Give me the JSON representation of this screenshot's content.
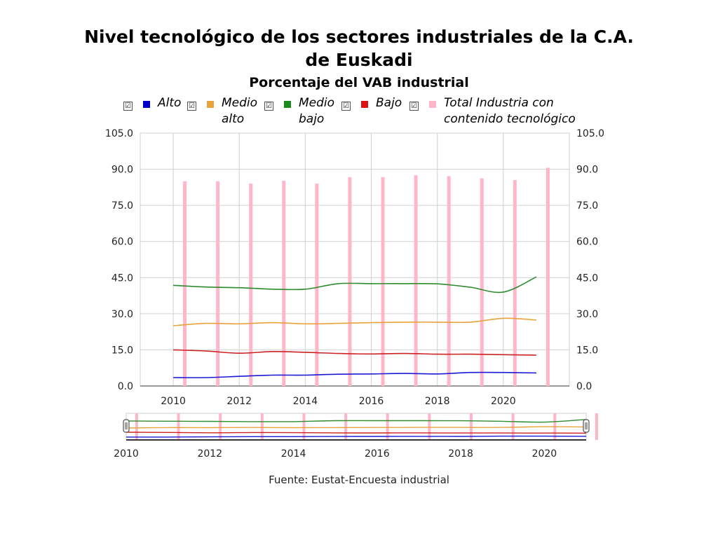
{
  "title": "Nivel tecnológico de los sectores industriales de la C.A. de Euskadi",
  "subtitle": "Porcentaje del VAB industrial",
  "source": "Fuente: Eustat-Encuesta industrial",
  "navigator_labels": [
    "2010",
    "2012",
    "2014",
    "2016",
    "2018",
    "2020"
  ],
  "chart_data": {
    "type": "line",
    "x_unit": "year",
    "xlim": [
      2009,
      2022
    ],
    "x_ticks": [
      "2010",
      "2012",
      "2014",
      "2016",
      "2018",
      "2020"
    ],
    "ylim": [
      0,
      105
    ],
    "y_ticks": [
      "0.0",
      "15.0",
      "30.0",
      "45.0",
      "60.0",
      "75.0",
      "90.0",
      "105.0"
    ],
    "grid": true,
    "legend_position": "top",
    "series": [
      {
        "name": "Alto",
        "type": "line",
        "color": "#1a1ad6",
        "x": [
          2010,
          2011,
          2012,
          2013,
          2014,
          2015,
          2016,
          2017,
          2018,
          2019,
          2020,
          2021
        ],
        "values": [
          3.5,
          3.5,
          4.0,
          4.5,
          4.5,
          4.9,
          5.0,
          5.2,
          5.0,
          5.6,
          5.6,
          5.4
        ]
      },
      {
        "name": "Medio alto",
        "type": "line",
        "color": "#e8a33a",
        "x": [
          2010,
          2011,
          2012,
          2013,
          2014,
          2015,
          2016,
          2017,
          2018,
          2019,
          2020,
          2021
        ],
        "values": [
          25.0,
          26.0,
          25.8,
          26.3,
          25.8,
          26.0,
          26.3,
          26.5,
          26.5,
          26.5,
          28.1,
          27.4
        ]
      },
      {
        "name": "Medio bajo",
        "type": "line",
        "color": "#2e8b2e",
        "x": [
          2010,
          2011,
          2012,
          2013,
          2014,
          2015,
          2016,
          2017,
          2018,
          2019,
          2020,
          2021
        ],
        "values": [
          41.8,
          41.1,
          40.8,
          40.2,
          40.2,
          42.5,
          42.5,
          42.5,
          42.4,
          41.0,
          39.0,
          45.3
        ]
      },
      {
        "name": "Bajo",
        "type": "line",
        "color": "#cc2222",
        "x": [
          2010,
          2011,
          2012,
          2013,
          2014,
          2015,
          2016,
          2017,
          2018,
          2019,
          2020,
          2021
        ],
        "values": [
          15.0,
          14.5,
          13.6,
          14.3,
          14.0,
          13.5,
          13.3,
          13.5,
          13.2,
          13.2,
          13.0,
          12.8
        ]
      },
      {
        "name": "Total Industria con contenido tecnológico",
        "type": "bar",
        "color": "#ffb6c8",
        "x": [
          2010,
          2011,
          2012,
          2013,
          2014,
          2015,
          2016,
          2017,
          2018,
          2019,
          2020,
          2021
        ],
        "values": [
          85.0,
          85.0,
          84.0,
          85.2,
          84.0,
          86.7,
          86.7,
          87.5,
          87.1,
          86.2,
          85.5,
          90.6
        ]
      }
    ]
  },
  "legend": [
    {
      "key": "alto",
      "label": "Alto",
      "color": "#0000cc",
      "checkbox": "☑"
    },
    {
      "key": "medio-alto",
      "label": "Medio\nalto",
      "color": "#e8a33a",
      "checkbox": "☑"
    },
    {
      "key": "medio-bajo",
      "label": "Medio\nbajo",
      "color": "#1a8a1a",
      "checkbox": "☑"
    },
    {
      "key": "bajo",
      "label": "Bajo",
      "color": "#dd1111",
      "checkbox": "☑"
    },
    {
      "key": "total",
      "label": "Total Industria con\ncontenido tecnológico",
      "color": "#ffb6c8",
      "checkbox": "☑"
    }
  ]
}
